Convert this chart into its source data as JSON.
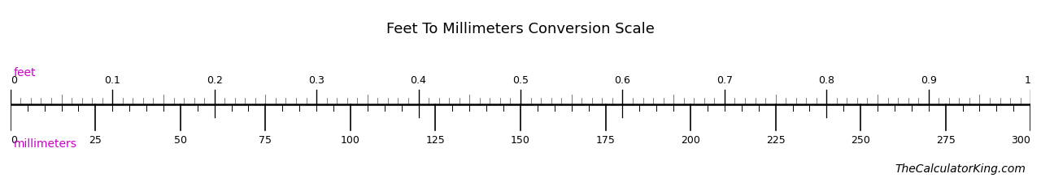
{
  "title": "Feet To Millimeters Conversion Scale",
  "title_fontsize": 13,
  "background_color": "#ffffff",
  "feet_label": "feet",
  "mm_label": "millimeters",
  "label_color": "#cc00cc",
  "feet_min": 0,
  "feet_max": 1,
  "mm_min": 0,
  "mm_max": 300,
  "feet_major_ticks": [
    0,
    0.1,
    0.2,
    0.3,
    0.4,
    0.5,
    0.6,
    0.7,
    0.8,
    0.9,
    1.0
  ],
  "mm_major_ticks": [
    0,
    25,
    50,
    75,
    100,
    125,
    150,
    175,
    200,
    225,
    250,
    275,
    300
  ],
  "watermark": "TheCalculatorKing.com",
  "watermark_fontsize": 10
}
